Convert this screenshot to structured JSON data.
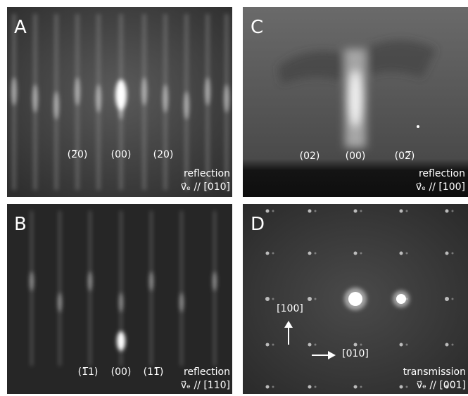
{
  "panels": [
    {
      "label": "A",
      "spots": [
        "(2̅0)",
        "(00)",
        "(20)"
      ],
      "mode": "reflection",
      "direction": "v⃗ₑ // [010]"
    },
    {
      "label": "B",
      "spots": [
        "(1̅1)",
        "(00)",
        "(11̅)"
      ],
      "mode": "reflection",
      "direction": "v⃗ₑ // [110]"
    },
    {
      "label": "C",
      "spots": [
        "(02)",
        "(00)",
        "(02̅)"
      ],
      "mode": "reflection",
      "direction": "v⃗ₑ // [100]"
    },
    {
      "label": "D",
      "axes": [
        "[100]",
        "[010]"
      ],
      "mode": "transmission",
      "direction": "v⃗ₑ // [001]"
    }
  ]
}
